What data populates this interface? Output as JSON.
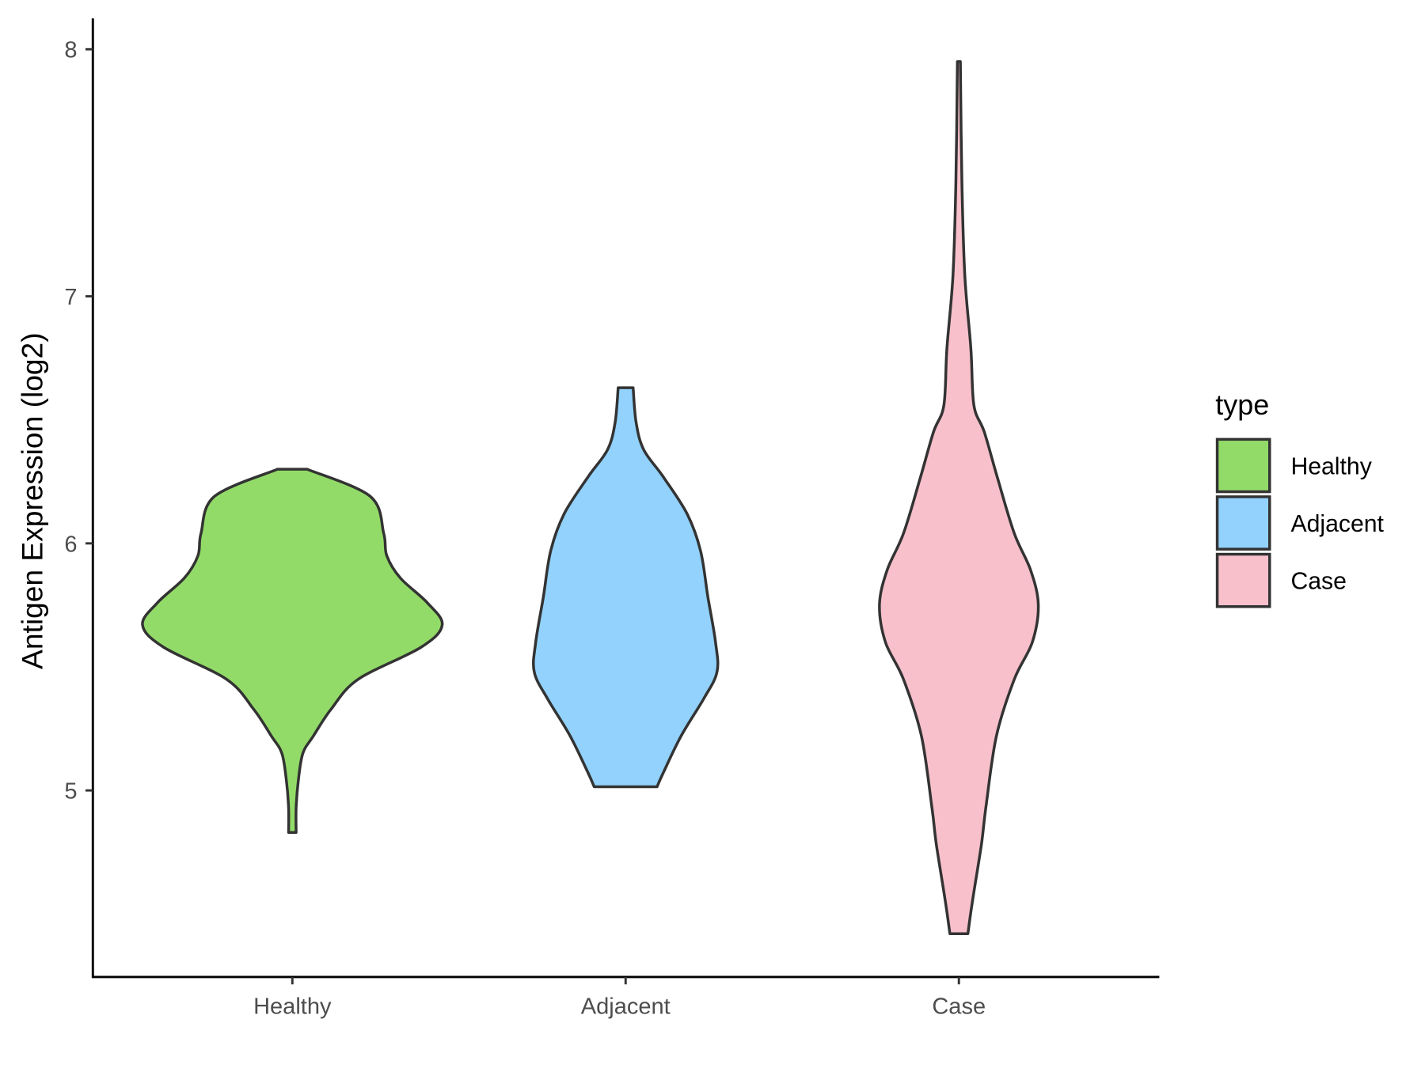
{
  "chart_data": {
    "type": "violin",
    "title": "",
    "xlabel": "",
    "ylabel": "Antigen Expression (log2)",
    "ylim": [
      4.245,
      8.125
    ],
    "yticks": [
      5,
      6,
      7,
      8
    ],
    "ytick_labels": [
      "5",
      "6",
      "7",
      "8"
    ],
    "categories": [
      "Healthy",
      "Adjacent",
      "Case"
    ],
    "grid": false,
    "legend": {
      "title": "type",
      "position": "right",
      "entries": [
        "Healthy",
        "Adjacent",
        "Case"
      ]
    },
    "series": [
      {
        "name": "Healthy",
        "color": "#93DB69",
        "min": 4.83,
        "max": 6.3,
        "profile": [
          [
            6.3,
            0.1
          ],
          [
            6.19,
            0.52
          ],
          [
            6.04,
            0.61
          ],
          [
            5.95,
            0.63
          ],
          [
            5.86,
            0.72
          ],
          [
            5.76,
            0.9
          ],
          [
            5.67,
            1.0
          ],
          [
            5.58,
            0.86
          ],
          [
            5.45,
            0.44
          ],
          [
            5.33,
            0.26
          ],
          [
            5.22,
            0.14
          ],
          [
            5.15,
            0.07
          ],
          [
            5.04,
            0.04
          ],
          [
            4.93,
            0.025
          ],
          [
            4.83,
            0.025
          ]
        ]
      },
      {
        "name": "Adjacent",
        "color": "#92D2FC",
        "min": 5.015,
        "max": 6.63,
        "profile": [
          [
            6.63,
            0.05
          ],
          [
            6.49,
            0.07
          ],
          [
            6.38,
            0.12
          ],
          [
            6.27,
            0.25
          ],
          [
            6.12,
            0.41
          ],
          [
            5.97,
            0.5
          ],
          [
            5.78,
            0.55
          ],
          [
            5.6,
            0.6
          ],
          [
            5.48,
            0.61
          ],
          [
            5.37,
            0.52
          ],
          [
            5.22,
            0.37
          ],
          [
            5.07,
            0.25
          ],
          [
            5.015,
            0.21
          ]
        ]
      },
      {
        "name": "Case",
        "color": "#F7C0CB",
        "min": 4.42,
        "max": 7.95,
        "profile": [
          [
            7.95,
            0.01
          ],
          [
            7.46,
            0.02
          ],
          [
            7.08,
            0.04
          ],
          [
            6.79,
            0.08
          ],
          [
            6.56,
            0.1
          ],
          [
            6.45,
            0.17
          ],
          [
            6.26,
            0.26
          ],
          [
            6.04,
            0.37
          ],
          [
            5.89,
            0.48
          ],
          [
            5.75,
            0.53
          ],
          [
            5.6,
            0.49
          ],
          [
            5.45,
            0.37
          ],
          [
            5.22,
            0.25
          ],
          [
            4.93,
            0.18
          ],
          [
            4.78,
            0.15
          ],
          [
            4.55,
            0.09
          ],
          [
            4.42,
            0.06
          ]
        ]
      }
    ]
  }
}
